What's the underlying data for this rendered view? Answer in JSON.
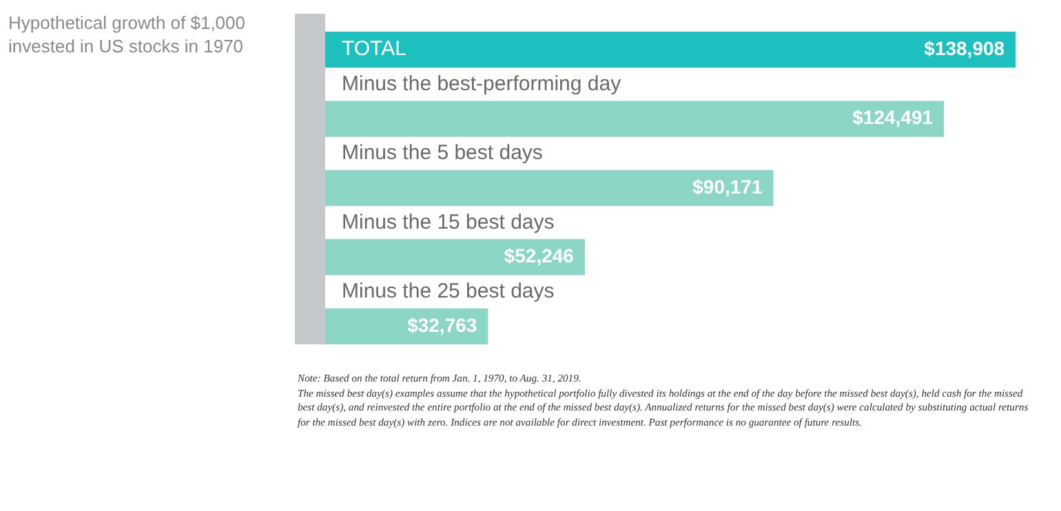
{
  "chart_data": {
    "type": "bar",
    "orientation": "horizontal",
    "title": "Hypothetical growth of $1,000 invested in US stocks in 1970",
    "categories": [
      "TOTAL",
      "Minus the best-performing day",
      "Minus the 5 best days",
      "Minus the 15 best days",
      "Minus the 25 best days"
    ],
    "values": [
      138908,
      124491,
      90171,
      52246,
      32763
    ],
    "colors": [
      "#1ebfbf",
      "#8cd6c8",
      "#8cd6c8",
      "#8cd6c8",
      "#8cd6c8"
    ],
    "value_labels": [
      "$138,908",
      "$124,491",
      "$90,171",
      "$52,246",
      "$32,763"
    ],
    "annotations": [
      "Note: Based on the total return from Jan. 1, 1970, to Aug. 31, 2019.",
      "The missed best day(s) examples assume that the hypothetical portfolio fully divested its holdings at the end of the day before the missed best day(s), held cash for the missed best day(s), and reinvested the entire portfolio at the end of the missed best day(s).  Annualized returns for the missed best day(s) were calculated by substituting actual returns for the missed best day(s) with zero.  Indices are not available for direct investment. Past performance is no guarantee of future results."
    ]
  }
}
